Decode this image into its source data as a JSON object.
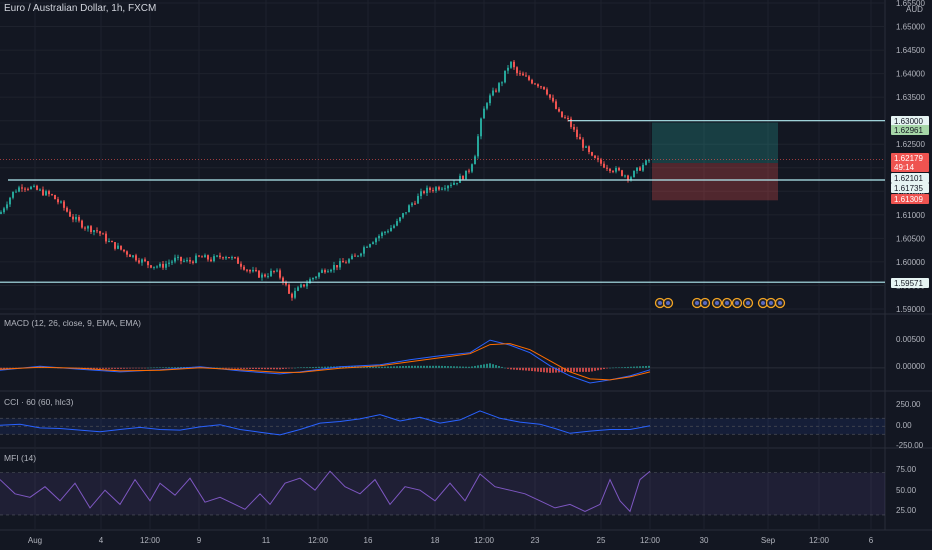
{
  "header": {
    "title": "Euro / Australian Dollar, 1h, FXCM",
    "currency": "AUD"
  },
  "price_axis": {
    "ticks": [
      "1.65500",
      "1.65000",
      "1.64500",
      "1.64000",
      "1.63500",
      "1.63000",
      "1.62500",
      "1.62000",
      "1.61500",
      "1.61000",
      "1.60500",
      "1.60000",
      "1.59500",
      "1.59000"
    ]
  },
  "price_tags": [
    {
      "label": "1.63000",
      "bg": "#e6f4f3",
      "fg": "#131722"
    },
    {
      "label": "1.62961",
      "bg": "#a5d6a7",
      "fg": "#131722"
    },
    {
      "label": "1.62179",
      "bg": "#ef5350",
      "fg": "#ffffff"
    },
    {
      "label": "49:14",
      "bg": "#ef5350",
      "fg": "#ffffff"
    },
    {
      "label": "1.62101",
      "bg": "#e6f4f3",
      "fg": "#131722"
    },
    {
      "label": "1.61735",
      "bg": "#e6f4f3",
      "fg": "#131722"
    },
    {
      "label": "1.61309",
      "bg": "#ef5350",
      "fg": "#ffffff"
    },
    {
      "label": "1.59571",
      "bg": "#e6f4f3",
      "fg": "#131722"
    }
  ],
  "panels": {
    "macd": {
      "title": "MACD (12, 26, close, 9, EMA, EMA)",
      "ticks": [
        "0.00500",
        "0.00000"
      ]
    },
    "cci": {
      "title": "CCI · 60 (60, hlc3)",
      "ticks": [
        "250.00",
        "0.00",
        "-250.00"
      ]
    },
    "mfi": {
      "title": "MFI (14)",
      "ticks": [
        "75.00",
        "50.00",
        "25.00"
      ]
    }
  },
  "time_axis": [
    "Aug",
    "4",
    "12:00",
    "9",
    "11",
    "12:00",
    "16",
    "18",
    "12:00",
    "23",
    "25",
    "12:00",
    "30",
    "Sep",
    "12:00",
    "6"
  ],
  "colors": {
    "bull": "#26a69a",
    "bear": "#ef5350",
    "hline": "#b2ebf2",
    "cci": "#2962ff",
    "mfi": "#7e57c2",
    "macd": "#2962ff",
    "signal": "#ff6d00",
    "bg": "#131722",
    "text": "#b2b5be"
  },
  "chart_data": {
    "type": "line",
    "symbol": "EURAUD",
    "interval": "1h",
    "price_path": [
      [
        0,
        1.6102
      ],
      [
        6,
        1.6125
      ],
      [
        14,
        1.615
      ],
      [
        22,
        1.6162
      ],
      [
        30,
        1.6158
      ],
      [
        40,
        1.615
      ],
      [
        52,
        1.614
      ],
      [
        62,
        1.612
      ],
      [
        72,
        1.6095
      ],
      [
        85,
        1.6075
      ],
      [
        98,
        1.6065
      ],
      [
        110,
        1.604
      ],
      [
        122,
        1.6025
      ],
      [
        135,
        1.601
      ],
      [
        148,
        1.5995
      ],
      [
        160,
        1.599
      ],
      [
        175,
        1.6005
      ],
      [
        188,
        1.6
      ],
      [
        200,
        1.601
      ],
      [
        212,
        1.6005
      ],
      [
        225,
        1.6015
      ],
      [
        238,
        1.6
      ],
      [
        250,
        1.598
      ],
      [
        262,
        1.597
      ],
      [
        275,
        1.598
      ],
      [
        284,
        1.596
      ],
      [
        290,
        1.5925
      ],
      [
        300,
        1.5945
      ],
      [
        312,
        1.5965
      ],
      [
        325,
        1.5985
      ],
      [
        340,
        1.5995
      ],
      [
        355,
        1.601
      ],
      [
        368,
        1.604
      ],
      [
        382,
        1.606
      ],
      [
        396,
        1.608
      ],
      [
        410,
        1.612
      ],
      [
        424,
        1.615
      ],
      [
        440,
        1.616
      ],
      [
        455,
        1.617
      ],
      [
        468,
        1.619
      ],
      [
        475,
        1.623
      ],
      [
        480,
        1.629
      ],
      [
        486,
        1.634
      ],
      [
        494,
        1.636
      ],
      [
        502,
        1.6385
      ],
      [
        510,
        1.6425
      ],
      [
        517,
        1.64
      ],
      [
        526,
        1.639
      ],
      [
        536,
        1.638
      ],
      [
        545,
        1.637
      ],
      [
        552,
        1.634
      ],
      [
        560,
        1.631
      ],
      [
        568,
        1.63
      ],
      [
        576,
        1.627
      ],
      [
        584,
        1.6245
      ],
      [
        592,
        1.622
      ],
      [
        600,
        1.621
      ],
      [
        610,
        1.62
      ],
      [
        620,
        1.619
      ],
      [
        630,
        1.618
      ],
      [
        640,
        1.62
      ],
      [
        646,
        1.621
      ],
      [
        650,
        1.6218
      ]
    ],
    "levels": [
      {
        "name": "resistance",
        "value": 1.63
      },
      {
        "name": "support",
        "value": 1.6174
      },
      {
        "name": "support",
        "value": 1.5957
      }
    ],
    "position": {
      "entry": 1.62101,
      "target": 1.62961,
      "stop": 1.61309
    },
    "ylim": [
      1.589,
      1.656
    ],
    "macd": {
      "ylim": [
        -0.004,
        0.0075
      ],
      "macd_path": [
        [
          0,
          -0.0005
        ],
        [
          40,
          0.0003
        ],
        [
          80,
          -0.0003
        ],
        [
          120,
          -0.0008
        ],
        [
          160,
          -0.0004
        ],
        [
          200,
          0.0002
        ],
        [
          240,
          -0.0006
        ],
        [
          280,
          -0.0012
        ],
        [
          300,
          -0.0008
        ],
        [
          340,
          0.0002
        ],
        [
          380,
          0.0006
        ],
        [
          410,
          0.0016
        ],
        [
          440,
          0.0024
        ],
        [
          470,
          0.003
        ],
        [
          490,
          0.0055
        ],
        [
          510,
          0.0045
        ],
        [
          530,
          0.003
        ],
        [
          550,
          0.0004
        ],
        [
          570,
          -0.0016
        ],
        [
          590,
          -0.003
        ],
        [
          610,
          -0.0024
        ],
        [
          630,
          -0.0016
        ],
        [
          650,
          -0.0004
        ]
      ],
      "signal_path": [
        [
          0,
          -0.0003
        ],
        [
          40,
          0.0001
        ],
        [
          80,
          -0.0001
        ],
        [
          120,
          -0.0006
        ],
        [
          160,
          -0.0005
        ],
        [
          200,
          0.0
        ],
        [
          240,
          -0.0004
        ],
        [
          280,
          -0.0009
        ],
        [
          300,
          -0.0009
        ],
        [
          340,
          -0.0001
        ],
        [
          380,
          0.0004
        ],
        [
          410,
          0.0012
        ],
        [
          440,
          0.002
        ],
        [
          470,
          0.0028
        ],
        [
          490,
          0.0046
        ],
        [
          510,
          0.0048
        ],
        [
          530,
          0.0036
        ],
        [
          550,
          0.0014
        ],
        [
          570,
          -0.0008
        ],
        [
          590,
          -0.0022
        ],
        [
          610,
          -0.0024
        ],
        [
          630,
          -0.0018
        ],
        [
          650,
          -0.0008
        ]
      ]
    },
    "cci": {
      "ylim": [
        -350,
        400
      ],
      "band": [
        -150,
        150
      ],
      "path": [
        [
          0,
          20
        ],
        [
          20,
          40
        ],
        [
          40,
          -30
        ],
        [
          60,
          -40
        ],
        [
          80,
          -70
        ],
        [
          100,
          -100
        ],
        [
          120,
          -60
        ],
        [
          140,
          -20
        ],
        [
          160,
          -60
        ],
        [
          180,
          -70
        ],
        [
          200,
          -10
        ],
        [
          220,
          30
        ],
        [
          240,
          -60
        ],
        [
          260,
          -110
        ],
        [
          280,
          -160
        ],
        [
          300,
          -60
        ],
        [
          320,
          60
        ],
        [
          340,
          90
        ],
        [
          360,
          140
        ],
        [
          380,
          220
        ],
        [
          400,
          100
        ],
        [
          420,
          170
        ],
        [
          440,
          60
        ],
        [
          460,
          120
        ],
        [
          480,
          290
        ],
        [
          500,
          150
        ],
        [
          520,
          80
        ],
        [
          540,
          40
        ],
        [
          555,
          -40
        ],
        [
          570,
          -130
        ],
        [
          590,
          -90
        ],
        [
          610,
          -60
        ],
        [
          630,
          -60
        ],
        [
          650,
          10
        ]
      ]
    },
    "mfi": {
      "ylim": [
        10,
        95
      ],
      "band": [
        20,
        80
      ],
      "path": [
        [
          0,
          70
        ],
        [
          15,
          50
        ],
        [
          30,
          45
        ],
        [
          45,
          60
        ],
        [
          60,
          40
        ],
        [
          75,
          65
        ],
        [
          90,
          30
        ],
        [
          105,
          55
        ],
        [
          120,
          35
        ],
        [
          135,
          70
        ],
        [
          150,
          40
        ],
        [
          160,
          65
        ],
        [
          175,
          48
        ],
        [
          190,
          72
        ],
        [
          205,
          38
        ],
        [
          220,
          45
        ],
        [
          235,
          35
        ],
        [
          245,
          28
        ],
        [
          260,
          50
        ],
        [
          270,
          35
        ],
        [
          285,
          65
        ],
        [
          300,
          72
        ],
        [
          315,
          55
        ],
        [
          330,
          82
        ],
        [
          345,
          60
        ],
        [
          360,
          50
        ],
        [
          375,
          70
        ],
        [
          390,
          35
        ],
        [
          405,
          60
        ],
        [
          420,
          55
        ],
        [
          435,
          40
        ],
        [
          450,
          65
        ],
        [
          465,
          40
        ],
        [
          480,
          78
        ],
        [
          495,
          60
        ],
        [
          510,
          55
        ],
        [
          525,
          50
        ],
        [
          540,
          40
        ],
        [
          555,
          30
        ],
        [
          570,
          35
        ],
        [
          585,
          25
        ],
        [
          600,
          35
        ],
        [
          610,
          70
        ],
        [
          620,
          40
        ],
        [
          630,
          25
        ],
        [
          640,
          70
        ],
        [
          650,
          82
        ]
      ]
    }
  }
}
